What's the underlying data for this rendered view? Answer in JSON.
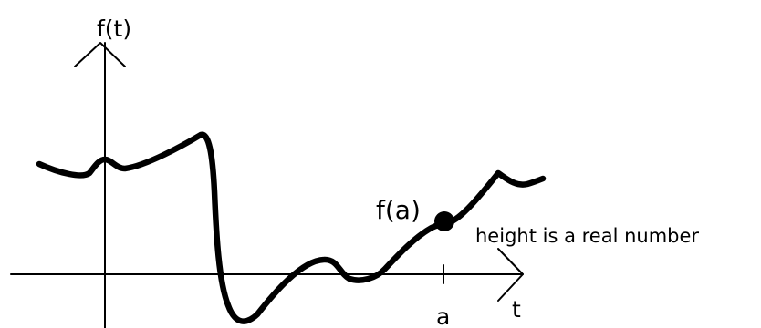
{
  "diagram": {
    "y_axis_label": "f(t)",
    "x_axis_label": "t",
    "point_tick_label": "a",
    "point_label": "f(a)",
    "annotation": "height is a real number"
  }
}
